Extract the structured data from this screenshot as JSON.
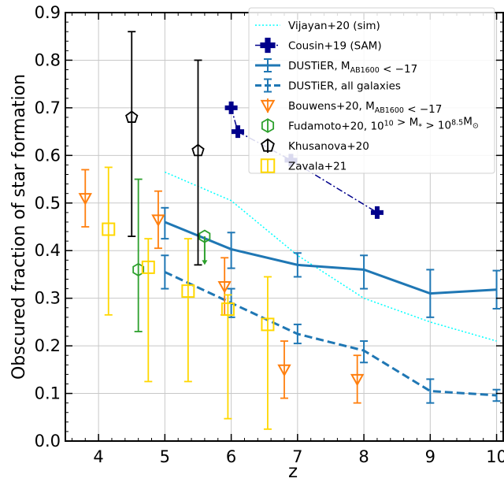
{
  "chart_data": {
    "type": "line",
    "xlabel": "z",
    "ylabel": "Obscured fraction of star formation",
    "xlim": [
      3.5,
      10.1
    ],
    "ylim": [
      0.0,
      0.9
    ],
    "xticks": [
      "4",
      "5",
      "6",
      "7",
      "8",
      "9",
      "10"
    ],
    "yticks": [
      "0.0",
      "0.1",
      "0.2",
      "0.3",
      "0.4",
      "0.5",
      "0.6",
      "0.7",
      "0.8",
      "0.9"
    ],
    "grid": true,
    "legend_position": "top-right",
    "series": [
      {
        "key": "vijayan",
        "name": "Vijayan+20 (sim)",
        "color": "#00ffff",
        "style": "dotted-line",
        "x": [
          5.0,
          6.0,
          7.0,
          8.0,
          9.0,
          10.0
        ],
        "y": [
          0.565,
          0.505,
          0.39,
          0.3,
          0.25,
          0.21
        ]
      },
      {
        "key": "cousin",
        "name": "Cousin+19 (SAM)",
        "color": "#00008b",
        "style": "dashdot-plus",
        "x": [
          6.0,
          6.1,
          6.9,
          8.2
        ],
        "y": [
          0.7,
          0.65,
          0.59,
          0.48
        ]
      },
      {
        "key": "dustier_bright",
        "name_parts": [
          "DUSTiER, M",
          "AB1600",
          " < −17"
        ],
        "color": "#1f77b4",
        "style": "solid-errorbar",
        "x": [
          5.0,
          6.0,
          7.0,
          8.0,
          9.0,
          10.0
        ],
        "y": [
          0.46,
          0.403,
          0.37,
          0.36,
          0.31,
          0.318
        ],
        "yerr_low": [
          0.035,
          0.04,
          0.025,
          0.04,
          0.05,
          0.04
        ],
        "yerr_high": [
          0.03,
          0.035,
          0.025,
          0.03,
          0.05,
          0.04
        ]
      },
      {
        "key": "dustier_all",
        "name": "DUSTiER, all galaxies",
        "color": "#1f77b4",
        "style": "dashed-errorbar",
        "x": [
          5.0,
          6.0,
          7.0,
          8.0,
          9.0,
          10.0
        ],
        "y": [
          0.355,
          0.29,
          0.225,
          0.19,
          0.105,
          0.096
        ],
        "yerr_low": [
          0.035,
          0.03,
          0.02,
          0.025,
          0.025,
          0.012
        ],
        "yerr_high": [
          0.035,
          0.03,
          0.02,
          0.02,
          0.025,
          0.012
        ]
      },
      {
        "key": "bouwens",
        "name_parts": [
          "Bouwens+20, M",
          "AB1600",
          " < −17"
        ],
        "color": "#ff7f0e",
        "style": "triangle-down",
        "x": [
          3.8,
          4.9,
          5.9,
          6.8,
          7.9
        ],
        "y": [
          0.51,
          0.465,
          0.325,
          0.15,
          0.13
        ],
        "yerr_low": [
          0.06,
          0.06,
          0.06,
          0.06,
          0.05
        ],
        "yerr_high": [
          0.06,
          0.06,
          0.06,
          0.06,
          0.05
        ]
      },
      {
        "key": "fudamoto",
        "name_parts": [
          "Fudamoto+20, 10",
          "10",
          " > M",
          "*",
          " > 10",
          "8.5",
          "M",
          "⊙"
        ],
        "color": "#2ca02c",
        "style": "hexagon",
        "x": [
          4.6,
          5.6
        ],
        "y": [
          0.36,
          0.43
        ],
        "yerr_low": [
          0.13,
          0.0
        ],
        "yerr_high": [
          0.19,
          0.0
        ],
        "upper_limit_to": [
          null,
          0.37
        ]
      },
      {
        "key": "khusanova",
        "name": "Khusanova+20",
        "color": "#000000",
        "style": "pentagon",
        "x": [
          4.5,
          5.5
        ],
        "y": [
          0.68,
          0.61
        ],
        "yerr_low": [
          0.25,
          0.24
        ],
        "yerr_high": [
          0.18,
          0.19
        ]
      },
      {
        "key": "zavala",
        "name": "Zavala+21",
        "color": "#ffd700",
        "style": "square",
        "x": [
          4.15,
          4.75,
          5.35,
          5.95,
          6.55
        ],
        "y": [
          0.445,
          0.365,
          0.315,
          0.277,
          0.245
        ],
        "yerr_low": [
          0.18,
          0.24,
          0.19,
          0.23,
          0.22
        ],
        "yerr_high": [
          0.13,
          0.06,
          0.11,
          0.03,
          0.1
        ]
      }
    ]
  }
}
